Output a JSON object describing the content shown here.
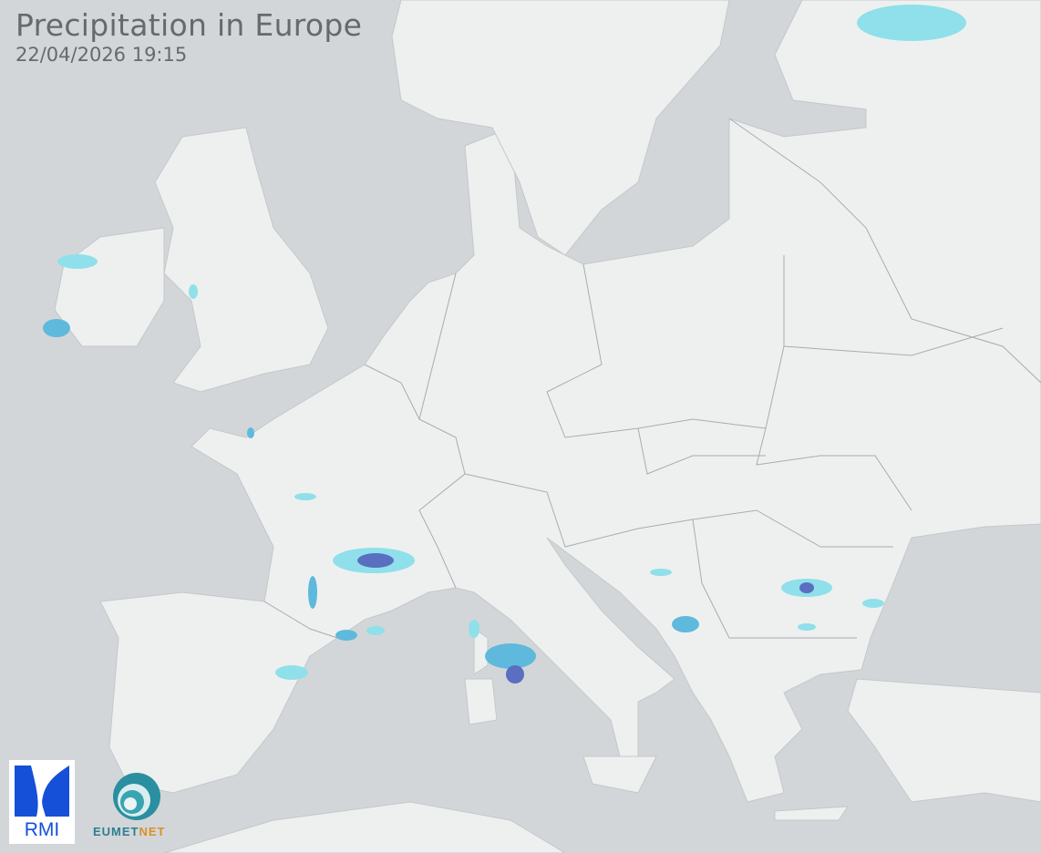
{
  "header": {
    "title": "Precipitation in Europe",
    "timestamp": "22/04/2026 19:15"
  },
  "map": {
    "region": "Europe",
    "layer": "precipitation radar",
    "colors": {
      "sea": "#d3d6d8",
      "land": "#eef0f0",
      "border": "#a8acaf",
      "light_precip": "#8fe0ea",
      "moderate_precip": "#5fb9dd",
      "heavy_precip": "#5a6fc0"
    }
  },
  "logos": {
    "rmi": {
      "text": "RMI",
      "color": "#1450d8"
    },
    "eumetnet": {
      "text_a": "EUMET",
      "text_b": "NET",
      "color_a": "#2c7f92",
      "color_b": "#d8902c"
    }
  }
}
